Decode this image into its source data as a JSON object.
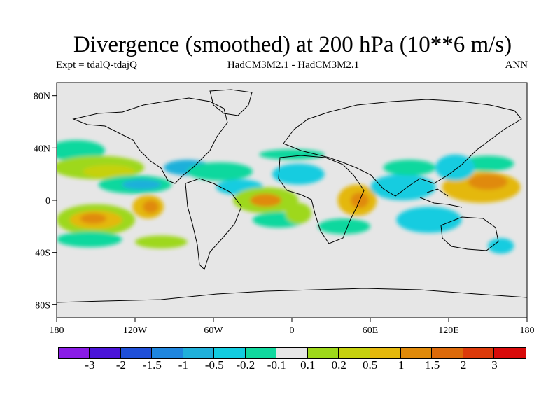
{
  "title": "Divergence (smoothed) at 200 hPa (10**6 m/s)",
  "subtitle_left": "Expt = tdalQ-tdajQ",
  "subtitle_center": "HadCM3M2.1 - HadCM3M2.1",
  "subtitle_right": "ANN",
  "y_ticks": [
    "80N",
    "40N",
    "0",
    "40S",
    "80S"
  ],
  "x_ticks": [
    "180",
    "120W",
    "60W",
    "0",
    "60E",
    "120E",
    "180"
  ],
  "colorbar": {
    "colors": [
      "#8a1ce6",
      "#4a14d8",
      "#1f4fd8",
      "#1f86de",
      "#1fb0da",
      "#12cce0",
      "#10d89e",
      "#e6e6e6",
      "#9ed81a",
      "#c6d10e",
      "#e4b80c",
      "#e08a0a",
      "#dc6a0a",
      "#dc3a0a",
      "#d80a0a"
    ],
    "labels": [
      "-3",
      "-2",
      "-1.5",
      "-1",
      "-0.5",
      "-0.2",
      "-0.1",
      "0.1",
      "0.2",
      "0.5",
      "1",
      "1.5",
      "2",
      "3"
    ]
  },
  "map_data": {
    "lon_range": [
      -180,
      180
    ],
    "lat_range": [
      -90,
      90
    ],
    "background": "#e6e6e6",
    "blobs": [
      {
        "lon": -165,
        "lat": 38,
        "rx": 22,
        "ry": 8,
        "c": "#10d89e"
      },
      {
        "lon": -148,
        "lat": 25,
        "rx": 35,
        "ry": 9,
        "c": "#9ed81a"
      },
      {
        "lon": -140,
        "lat": 22,
        "rx": 20,
        "ry": 5,
        "c": "#c6d10e"
      },
      {
        "lon": -120,
        "lat": 12,
        "rx": 28,
        "ry": 7,
        "c": "#10d89e"
      },
      {
        "lon": -115,
        "lat": 12,
        "rx": 15,
        "ry": 4,
        "c": "#1fb0da"
      },
      {
        "lon": -150,
        "lat": -15,
        "rx": 30,
        "ry": 12,
        "c": "#9ed81a"
      },
      {
        "lon": -150,
        "lat": -15,
        "rx": 20,
        "ry": 7,
        "c": "#e4b80c"
      },
      {
        "lon": -152,
        "lat": -14,
        "rx": 10,
        "ry": 4,
        "c": "#e08a0a"
      },
      {
        "lon": -110,
        "lat": -5,
        "rx": 12,
        "ry": 9,
        "c": "#e4b80c"
      },
      {
        "lon": -108,
        "lat": -5,
        "rx": 6,
        "ry": 5,
        "c": "#e08a0a"
      },
      {
        "lon": -155,
        "lat": -30,
        "rx": 25,
        "ry": 6,
        "c": "#10d89e"
      },
      {
        "lon": -100,
        "lat": -32,
        "rx": 20,
        "ry": 5,
        "c": "#9ed81a"
      },
      {
        "lon": -80,
        "lat": 25,
        "rx": 18,
        "ry": 6,
        "c": "#1fb0da"
      },
      {
        "lon": -55,
        "lat": 22,
        "rx": 25,
        "ry": 7,
        "c": "#10d89e"
      },
      {
        "lon": -40,
        "lat": 10,
        "rx": 18,
        "ry": 6,
        "c": "#12cce0"
      },
      {
        "lon": -20,
        "lat": 0,
        "rx": 25,
        "ry": 10,
        "c": "#9ed81a"
      },
      {
        "lon": -20,
        "lat": 0,
        "rx": 12,
        "ry": 5,
        "c": "#e08a0a"
      },
      {
        "lon": 5,
        "lat": 20,
        "rx": 20,
        "ry": 8,
        "c": "#12cce0"
      },
      {
        "lon": 0,
        "lat": 35,
        "rx": 25,
        "ry": 4,
        "c": "#10d89e"
      },
      {
        "lon": -10,
        "lat": -15,
        "rx": 20,
        "ry": 6,
        "c": "#10d89e"
      },
      {
        "lon": 5,
        "lat": -10,
        "rx": 10,
        "ry": 8,
        "c": "#9ed81a"
      },
      {
        "lon": 50,
        "lat": 0,
        "rx": 15,
        "ry": 12,
        "c": "#e4b80c"
      },
      {
        "lon": 52,
        "lat": 0,
        "rx": 7,
        "ry": 6,
        "c": "#e08a0a"
      },
      {
        "lon": 40,
        "lat": -20,
        "rx": 20,
        "ry": 6,
        "c": "#10d89e"
      },
      {
        "lon": 85,
        "lat": 10,
        "rx": 25,
        "ry": 10,
        "c": "#12cce0"
      },
      {
        "lon": 90,
        "lat": 25,
        "rx": 20,
        "ry": 6,
        "c": "#10d89e"
      },
      {
        "lon": 105,
        "lat": -15,
        "rx": 25,
        "ry": 10,
        "c": "#12cce0"
      },
      {
        "lon": 145,
        "lat": 10,
        "rx": 30,
        "ry": 12,
        "c": "#e4b80c"
      },
      {
        "lon": 150,
        "lat": 14,
        "rx": 15,
        "ry": 6,
        "c": "#e08a0a"
      },
      {
        "lon": 150,
        "lat": 28,
        "rx": 20,
        "ry": 6,
        "c": "#10d89e"
      },
      {
        "lon": 125,
        "lat": 25,
        "rx": 15,
        "ry": 10,
        "c": "#12cce0"
      },
      {
        "lon": 160,
        "lat": -35,
        "rx": 10,
        "ry": 6,
        "c": "#12cce0"
      }
    ]
  }
}
